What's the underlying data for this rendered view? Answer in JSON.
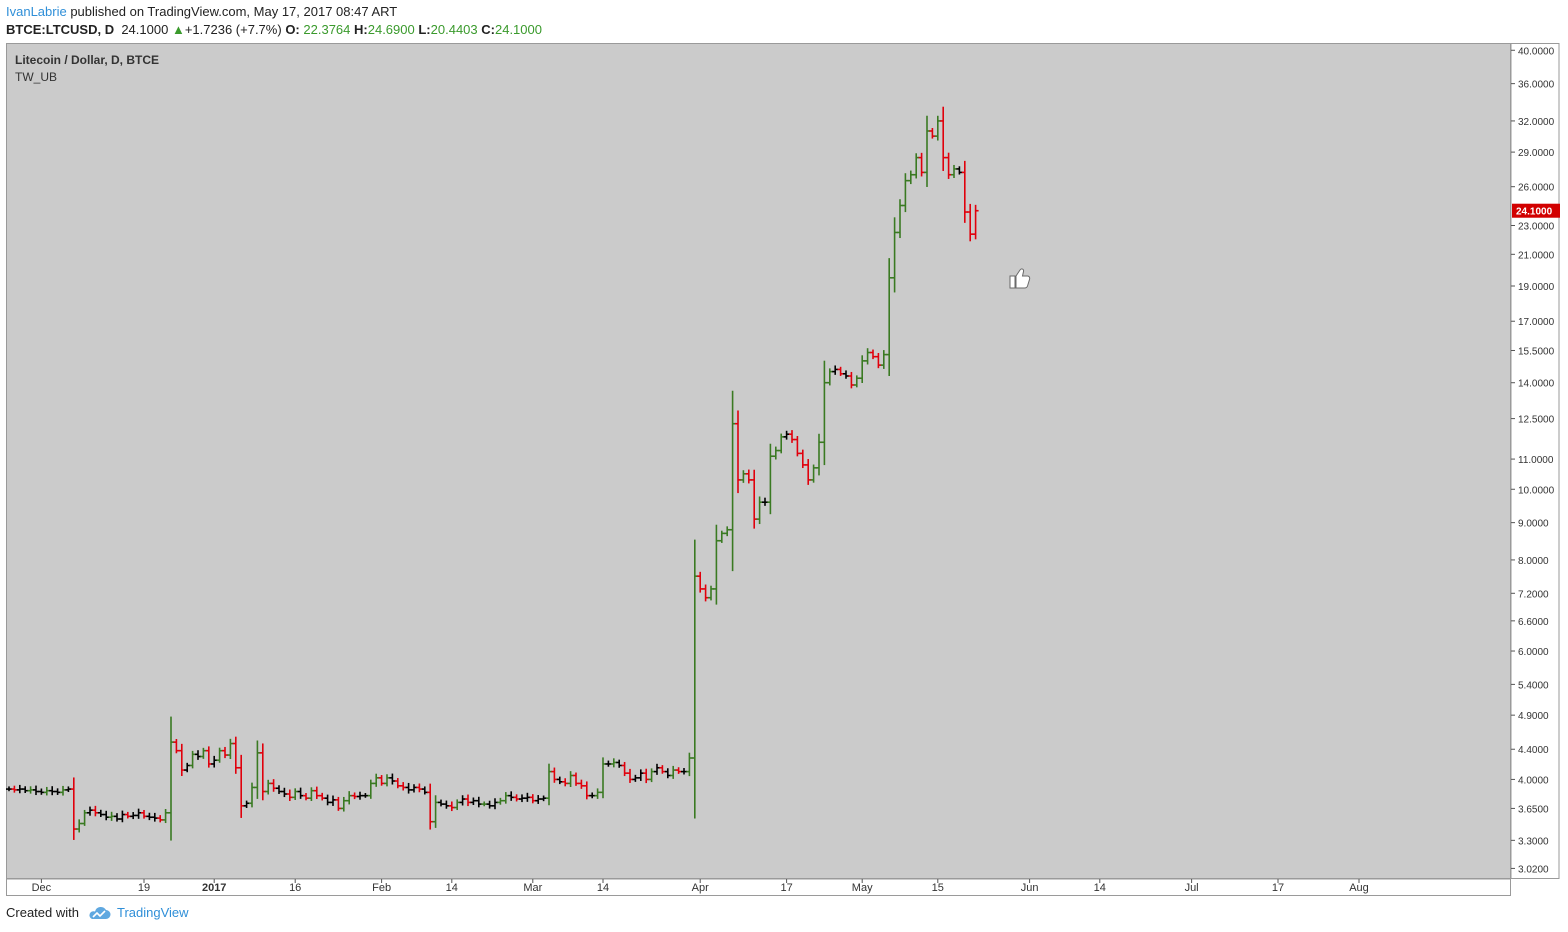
{
  "header": {
    "author": "IvanLabrie",
    "published_text": " published on TradingView.com, May 17, 2017 08:47 ART",
    "symbol": "BTCE:LTCUSD, D",
    "last": "24.1000",
    "arrow": "▲",
    "change": "+1.7236 (+7.7%)",
    "o_label": "O:",
    "o_value": "22.3764",
    "h_label": "H:",
    "h_value": "24.6900",
    "l_label": "L:",
    "l_value": "20.4403",
    "c_label": "C:",
    "c_value": "24.1000"
  },
  "footer": {
    "created_with": "Created with",
    "brand": "TradingView"
  },
  "colors": {
    "up": "#3a7a22",
    "down": "#e0000c",
    "neutral": "#000000",
    "background": "#cbcbcb",
    "price_tag": "#d20000",
    "link": "#2f8fd8"
  },
  "chart_data": {
    "type": "ohlc",
    "title": "Litecoin / Dollar, D, BTCE",
    "indicator": "TW_UB",
    "scale": "log",
    "ylim": [
      2.93,
      40.8
    ],
    "y_ticks": [
      "40.0000",
      "36.0000",
      "32.0000",
      "29.0000",
      "26.0000",
      "23.0000",
      "21.0000",
      "19.0000",
      "17.0000",
      "15.5000",
      "14.0000",
      "12.5000",
      "11.0000",
      "10.0000",
      "9.0000",
      "8.0000",
      "7.2000",
      "6.6000",
      "6.0000",
      "5.4000",
      "4.9000",
      "4.4000",
      "4.0000",
      "3.6500",
      "3.3000",
      "3.0200"
    ],
    "x_ticks": [
      {
        "label": "Dec",
        "day": 6,
        "bold": false
      },
      {
        "label": "19",
        "day": 25,
        "bold": false
      },
      {
        "label": "2017",
        "day": 38,
        "bold": true
      },
      {
        "label": "16",
        "day": 53,
        "bold": false
      },
      {
        "label": "Feb",
        "day": 69,
        "bold": false
      },
      {
        "label": "14",
        "day": 82,
        "bold": false
      },
      {
        "label": "Mar",
        "day": 97,
        "bold": false
      },
      {
        "label": "14",
        "day": 110,
        "bold": false
      },
      {
        "label": "Apr",
        "day": 128,
        "bold": false
      },
      {
        "label": "17",
        "day": 144,
        "bold": false
      },
      {
        "label": "May",
        "day": 158,
        "bold": false
      },
      {
        "label": "15",
        "day": 172,
        "bold": false
      },
      {
        "label": "Jun",
        "day": 189,
        "bold": false
      },
      {
        "label": "14",
        "day": 202,
        "bold": false
      },
      {
        "label": "Jul",
        "day": 219,
        "bold": false
      },
      {
        "label": "17",
        "day": 235,
        "bold": false
      },
      {
        "label": "Aug",
        "day": 250,
        "bold": false
      }
    ],
    "last_price_label": "24.1000",
    "marker": "thumbs-up",
    "closes": [
      3.88,
      3.87,
      3.88,
      3.86,
      3.87,
      3.85,
      3.84,
      3.86,
      3.85,
      3.84,
      3.87,
      3.88,
      3.42,
      3.48,
      3.6,
      3.63,
      3.6,
      3.58,
      3.55,
      3.56,
      3.53,
      3.58,
      3.56,
      3.57,
      3.6,
      3.56,
      3.55,
      3.54,
      3.52,
      3.6,
      4.5,
      4.38,
      4.12,
      4.18,
      4.33,
      4.3,
      4.38,
      4.2,
      4.25,
      4.38,
      4.32,
      4.48,
      4.15,
      3.68,
      3.71,
      3.9,
      4.35,
      3.85,
      3.95,
      3.89,
      3.85,
      3.82,
      3.78,
      3.85,
      3.8,
      3.77,
      3.86,
      3.8,
      3.77,
      3.72,
      3.75,
      3.65,
      3.74,
      3.8,
      3.79,
      3.8,
      3.8,
      3.95,
      4.02,
      3.95,
      4.02,
      3.98,
      3.92,
      3.9,
      3.87,
      3.9,
      3.88,
      3.84,
      3.5,
      3.72,
      3.7,
      3.68,
      3.66,
      3.72,
      3.76,
      3.72,
      3.74,
      3.7,
      3.7,
      3.68,
      3.72,
      3.74,
      3.8,
      3.78,
      3.76,
      3.77,
      3.78,
      3.74,
      3.76,
      3.77,
      4.1,
      4.0,
      3.97,
      3.95,
      4.05,
      3.95,
      3.92,
      3.8,
      3.8,
      3.84,
      4.2,
      4.2,
      4.22,
      4.18,
      4.08,
      4.0,
      4.02,
      4.08,
      4.0,
      4.1,
      4.15,
      4.1,
      4.05,
      4.12,
      4.1,
      4.1,
      4.28,
      7.6,
      7.3,
      7.1,
      7.3,
      8.5,
      8.7,
      8.8,
      12.3,
      10.3,
      10.5,
      10.3,
      9.1,
      9.6,
      9.6,
      11.1,
      11.3,
      11.8,
      11.9,
      11.7,
      11.2,
      10.8,
      10.3,
      10.7,
      11.6,
      14.0,
      14.5,
      14.6,
      14.4,
      14.3,
      13.9,
      14.2,
      15.0,
      15.4,
      15.2,
      14.8,
      15.3,
      19.5,
      22.5,
      24.5,
      26.5,
      27.0,
      28.5,
      27.2,
      31.0,
      30.5,
      32.0,
      28.5,
      27.0,
      27.5,
      27.2,
      24.0,
      22.38,
      24.1
    ]
  }
}
